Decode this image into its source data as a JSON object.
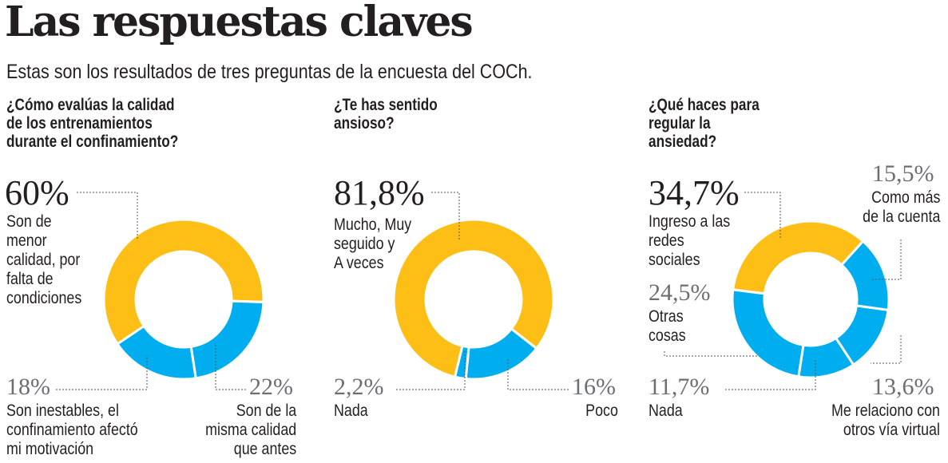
{
  "header": {
    "title": "Las respuestas claves",
    "subtitle": "Estas son los resultados de tres preguntas de la encuesta del COCh."
  },
  "colors": {
    "yellow": "#FDBE16",
    "blue": "#00AEEF",
    "leader": "#555555"
  },
  "chart_data": [
    {
      "type": "pie",
      "variant": "donut",
      "title": "¿Cómo evalúas la calidad\nde los entrenamientos\ndurante el confinamiento?",
      "slices": [
        {
          "value": 60,
          "label_value": "60%",
          "label": "Son de\nmenor\ncalidad, por\nfalta de\ncondiciones",
          "color": "yellow"
        },
        {
          "value": 18,
          "label_value": "18%",
          "label": "Son inestables, el\nconfinamiento afectó\nmi motivación",
          "color": "blue"
        },
        {
          "value": 22,
          "label_value": "22%",
          "label": "Son de la\nmisma calidad\nque antes",
          "color": "blue"
        }
      ]
    },
    {
      "type": "pie",
      "variant": "donut",
      "title": "¿Te has sentido\nansioso?",
      "slices": [
        {
          "value": 81.8,
          "label_value": "81,8%",
          "label": "Mucho, Muy\nseguido y\nA veces",
          "color": "yellow"
        },
        {
          "value": 2.2,
          "label_value": "2,2%",
          "label": "Nada",
          "color": "blue"
        },
        {
          "value": 16,
          "label_value": "16%",
          "label": "Poco",
          "color": "blue"
        }
      ]
    },
    {
      "type": "pie",
      "variant": "donut",
      "title": "¿Qué haces para\nregular la\nansiedad?",
      "slices": [
        {
          "value": 34.7,
          "label_value": "34,7%",
          "label": "Ingreso a las\nredes\nsociales",
          "color": "yellow"
        },
        {
          "value": 24.5,
          "label_value": "24,5%",
          "label": "Otras\ncosas",
          "color": "blue"
        },
        {
          "value": 11.7,
          "label_value": "11,7%",
          "label": "Nada",
          "color": "blue"
        },
        {
          "value": 13.6,
          "label_value": "13,6%",
          "label": "Me relaciono con\notros vía virtual",
          "color": "blue"
        },
        {
          "value": 15.5,
          "label_value": "15,5%",
          "label": "Como más\nde la cuenta",
          "color": "blue"
        }
      ]
    }
  ]
}
